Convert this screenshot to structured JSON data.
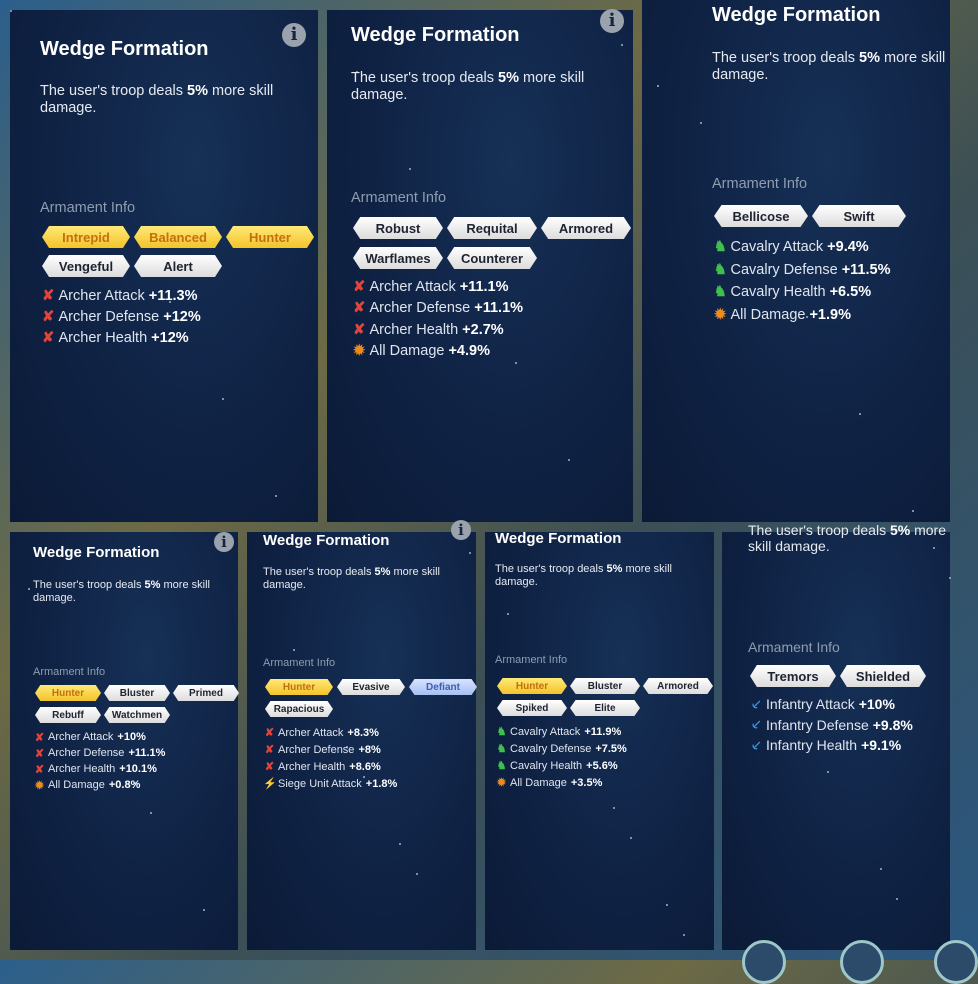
{
  "colors": {
    "gold": "#f3c32a",
    "white": "#e8e8e8",
    "blue": "#a7c0f2",
    "archer_icon": "#e2443a",
    "cavalry_icon": "#3fbf4c",
    "damage_icon": "#f08a1c",
    "infantry_icon": "#3d9be8",
    "siege_icon": "#9b4fe0"
  },
  "panels": [
    {
      "title": "Wedge Formation",
      "desc_pre": "The user's troop deals ",
      "desc_bold": "5%",
      "desc_post": " more skill damage.",
      "armament_label": "Armament Info",
      "info_icon": true,
      "chips": [
        {
          "label": "Intrepid",
          "style": "gold"
        },
        {
          "label": "Balanced",
          "style": "gold"
        },
        {
          "label": "Hunter",
          "style": "gold"
        },
        {
          "label": "Vengeful",
          "style": "white"
        },
        {
          "label": "Alert",
          "style": "white"
        }
      ],
      "stats": [
        {
          "icon": "archer-icon",
          "label": "Archer Attack",
          "value": "+11.3%"
        },
        {
          "icon": "archer-icon",
          "label": "Archer Defense",
          "value": "+12%"
        },
        {
          "icon": "archer-icon",
          "label": "Archer Health",
          "value": "+12%"
        }
      ]
    },
    {
      "title": "Wedge Formation",
      "desc_pre": "The user's troop deals ",
      "desc_bold": "5%",
      "desc_post": " more skill damage.",
      "armament_label": "Armament Info",
      "info_icon": true,
      "chips": [
        {
          "label": "Robust",
          "style": "white"
        },
        {
          "label": "Requital",
          "style": "white"
        },
        {
          "label": "Armored",
          "style": "white"
        },
        {
          "label": "Warflames",
          "style": "white"
        },
        {
          "label": "Counterer",
          "style": "white"
        }
      ],
      "stats": [
        {
          "icon": "archer-icon",
          "label": "Archer Attack",
          "value": "+11.1%"
        },
        {
          "icon": "archer-icon",
          "label": "Archer Defense",
          "value": "+11.1%"
        },
        {
          "icon": "archer-icon",
          "label": "Archer Health",
          "value": "+2.7%"
        },
        {
          "icon": "all-damage-icon",
          "label": "All Damage",
          "value": "+4.9%"
        }
      ]
    },
    {
      "title": "Wedge Formation",
      "desc_pre": "The user's troop deals ",
      "desc_bold": "5%",
      "desc_post": " more skill damage.",
      "armament_label": "Armament Info",
      "info_icon": false,
      "chips": [
        {
          "label": "Bellicose",
          "style": "white"
        },
        {
          "label": "Swift",
          "style": "white"
        }
      ],
      "stats": [
        {
          "icon": "cavalry-icon",
          "label": "Cavalry Attack",
          "value": "+9.4%"
        },
        {
          "icon": "cavalry-icon",
          "label": "Cavalry Defense",
          "value": "+11.5%"
        },
        {
          "icon": "cavalry-icon",
          "label": "Cavalry Health",
          "value": "+6.5%"
        },
        {
          "icon": "all-damage-icon",
          "label": "All Damage",
          "value": "+1.9%"
        }
      ]
    },
    {
      "title": "Wedge Formation",
      "desc_pre": "The user's troop deals ",
      "desc_bold": "5%",
      "desc_post": " more skill damage.",
      "armament_label": "Armament Info",
      "info_icon": true,
      "chips": [
        {
          "label": "Hunter",
          "style": "gold"
        },
        {
          "label": "Bluster",
          "style": "white"
        },
        {
          "label": "Primed",
          "style": "white"
        },
        {
          "label": "Rebuff",
          "style": "white"
        },
        {
          "label": "Watchmen",
          "style": "white"
        }
      ],
      "stats": [
        {
          "icon": "archer-icon",
          "label": "Archer Attack",
          "value": "+10%"
        },
        {
          "icon": "archer-icon",
          "label": "Archer Defense",
          "value": "+11.1%"
        },
        {
          "icon": "archer-icon",
          "label": "Archer Health",
          "value": "+10.1%"
        },
        {
          "icon": "all-damage-icon",
          "label": "All Damage",
          "value": "+0.8%"
        }
      ]
    },
    {
      "title": "Wedge Formation",
      "desc_pre": "The user's troop deals ",
      "desc_bold": "5%",
      "desc_post": " more skill damage.",
      "armament_label": "Armament Info",
      "info_icon": true,
      "chips": [
        {
          "label": "Hunter",
          "style": "gold"
        },
        {
          "label": "Evasive",
          "style": "white"
        },
        {
          "label": "Defiant",
          "style": "blue"
        },
        {
          "label": "Rapacious",
          "style": "white"
        }
      ],
      "stats": [
        {
          "icon": "archer-icon",
          "label": "Archer Attack",
          "value": "+8.3%"
        },
        {
          "icon": "archer-icon",
          "label": "Archer Defense",
          "value": "+8%"
        },
        {
          "icon": "archer-icon",
          "label": "Archer Health",
          "value": "+8.6%"
        },
        {
          "icon": "siege-icon",
          "label": "Siege Unit Attack",
          "value": "+1.8%"
        }
      ]
    },
    {
      "title": "Wedge Formation",
      "desc_pre": "The user's troop deals ",
      "desc_bold": "5%",
      "desc_post": " more skill damage.",
      "armament_label": "Armament Info",
      "info_icon": true,
      "chips": [
        {
          "label": "Hunter",
          "style": "gold"
        },
        {
          "label": "Bluster",
          "style": "white"
        },
        {
          "label": "Armored",
          "style": "white"
        },
        {
          "label": "Spiked",
          "style": "white"
        },
        {
          "label": "Elite",
          "style": "white"
        }
      ],
      "stats": [
        {
          "icon": "cavalry-icon",
          "label": "Cavalry Attack",
          "value": "+11.9%"
        },
        {
          "icon": "cavalry-icon",
          "label": "Cavalry Defense",
          "value": "+7.5%"
        },
        {
          "icon": "cavalry-icon",
          "label": "Cavalry Health",
          "value": "+5.6%"
        },
        {
          "icon": "all-damage-icon",
          "label": "All Damage",
          "value": "+3.5%"
        }
      ]
    },
    {
      "title": "",
      "desc_pre": "The user's troop deals ",
      "desc_bold": "5%",
      "desc_post": " more skill damage.",
      "armament_label": "Armament Info",
      "info_icon": false,
      "chips": [
        {
          "label": "Tremors",
          "style": "white"
        },
        {
          "label": "Shielded",
          "style": "white"
        }
      ],
      "stats": [
        {
          "icon": "infantry-icon",
          "label": "Infantry Attack",
          "value": "+10%"
        },
        {
          "icon": "infantry-icon",
          "label": "Infantry Defense",
          "value": "+9.8%"
        },
        {
          "icon": "infantry-icon",
          "label": "Infantry Health",
          "value": "+9.1%"
        }
      ]
    }
  ]
}
